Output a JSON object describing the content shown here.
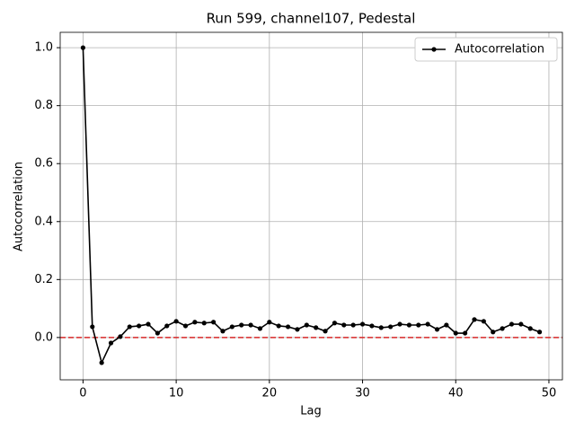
{
  "chart_data": {
    "type": "line",
    "title": "Run 599, channel107, Pedestal",
    "x_label": "Lag",
    "y_label": "Autocorrelation",
    "x": [
      0,
      1,
      2,
      3,
      4,
      5,
      6,
      7,
      8,
      9,
      10,
      11,
      12,
      13,
      14,
      15,
      16,
      17,
      18,
      19,
      20,
      21,
      22,
      23,
      24,
      25,
      26,
      27,
      28,
      29,
      30,
      31,
      32,
      33,
      34,
      35,
      36,
      37,
      38,
      39,
      40,
      41,
      42,
      43,
      44,
      45,
      46,
      47,
      48,
      49
    ],
    "series": [
      {
        "name": "Autocorrelation",
        "color": "#000000",
        "values": [
          1.0,
          0.037,
          -0.087,
          -0.019,
          0.003,
          0.037,
          0.04,
          0.046,
          0.015,
          0.04,
          0.056,
          0.04,
          0.053,
          0.05,
          0.053,
          0.022,
          0.037,
          0.043,
          0.043,
          0.031,
          0.053,
          0.04,
          0.037,
          0.028,
          0.043,
          0.034,
          0.022,
          0.05,
          0.043,
          0.043,
          0.046,
          0.04,
          0.034,
          0.037,
          0.046,
          0.043,
          0.043,
          0.046,
          0.028,
          0.043,
          0.015,
          0.015,
          0.062,
          0.056,
          0.019,
          0.031,
          0.046,
          0.046,
          0.031,
          0.019
        ]
      }
    ],
    "hline": {
      "value": 0,
      "color": "#d62728"
    },
    "xlim": [
      -2.45,
      51.45
    ],
    "ylim": [
      -0.146,
      1.053
    ],
    "xticks": [
      0,
      10,
      20,
      30,
      40,
      50
    ],
    "yticks": [
      {
        "value": 0,
        "label": "0.0"
      },
      0.2,
      0.4,
      0.6,
      0.8,
      {
        "value": 1,
        "label": "1.0"
      }
    ],
    "grid": true,
    "legend": "upper right"
  }
}
